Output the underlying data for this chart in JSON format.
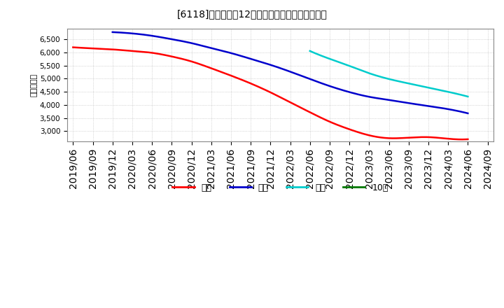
{
  "title": "[6118]　経常利益12か月移動合計の平均値の推移",
  "ylabel": "（百万円）",
  "background_color": "#ffffff",
  "plot_bg_color": "#ffffff",
  "grid_color": "#999999",
  "ylim": [
    2600,
    6900
  ],
  "yticks": [
    3000,
    3500,
    4000,
    4500,
    5000,
    5500,
    6000,
    6500
  ],
  "x_labels": [
    "2019/06",
    "2019/09",
    "2019/12",
    "2020/03",
    "2020/06",
    "2020/09",
    "2020/12",
    "2021/03",
    "2021/06",
    "2021/09",
    "2021/12",
    "2022/03",
    "2022/06",
    "2022/09",
    "2022/12",
    "2023/03",
    "2023/06",
    "2023/09",
    "2023/12",
    "2024/03",
    "2024/06",
    "2024/09"
  ],
  "series_3": {
    "color": "#ff0000",
    "values": [
      6200,
      6160,
      6120,
      6060,
      5990,
      5850,
      5660,
      5400,
      5120,
      4820,
      4480,
      4100,
      3720,
      3360,
      3070,
      2840,
      2730,
      2750,
      2770,
      2710,
      2690,
      null
    ]
  },
  "series_5": {
    "color": "#0000cc",
    "values": [
      null,
      null,
      6780,
      6730,
      6640,
      6510,
      6360,
      6170,
      5980,
      5760,
      5530,
      5270,
      4990,
      4720,
      4490,
      4310,
      4190,
      4070,
      3960,
      3840,
      3680,
      null
    ]
  },
  "series_7": {
    "color": "#00cccc",
    "values": [
      null,
      null,
      null,
      null,
      null,
      null,
      null,
      null,
      null,
      null,
      null,
      null,
      6060,
      5760,
      5490,
      5210,
      4990,
      4820,
      4660,
      4500,
      4320,
      null
    ]
  },
  "series_10": {
    "color": "#007700",
    "values": [
      null,
      null,
      null,
      null,
      null,
      null,
      null,
      null,
      null,
      null,
      null,
      null,
      null,
      null,
      null,
      null,
      null,
      null,
      null,
      null,
      null,
      null
    ]
  },
  "legend_labels": [
    "３年",
    "５年",
    "７年",
    "10年"
  ],
  "legend_colors": [
    "#ff0000",
    "#0000cc",
    "#00cccc",
    "#007700"
  ]
}
